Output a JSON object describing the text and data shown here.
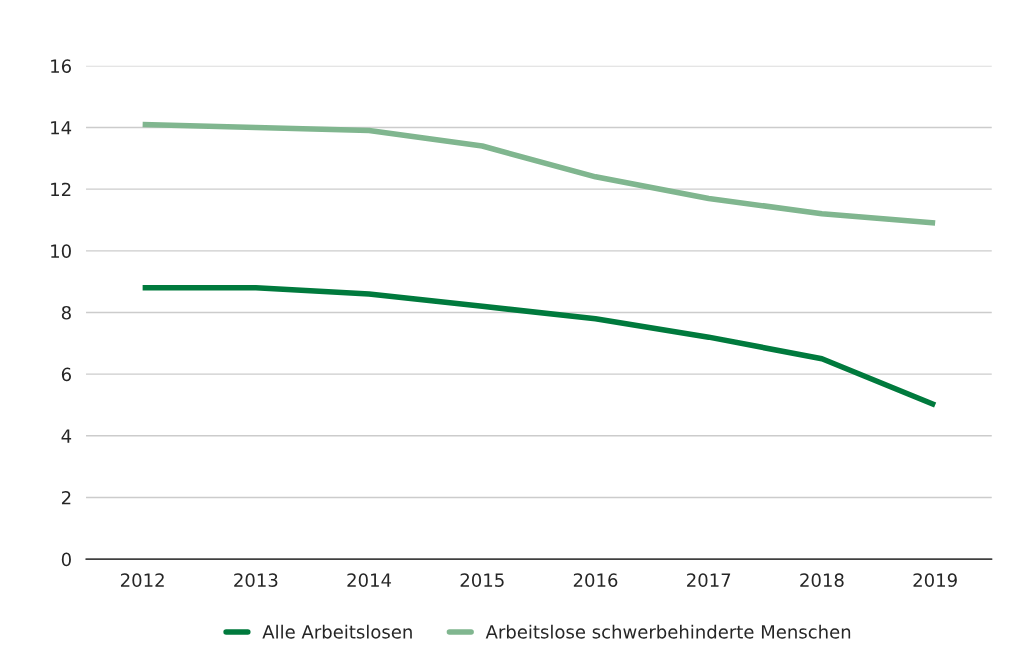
{
  "chart_data": {
    "type": "line",
    "categories": [
      "2012",
      "2013",
      "2014",
      "2015",
      "2016",
      "2017",
      "2018",
      "2019"
    ],
    "series": [
      {
        "name": "Alle Arbeitslosen",
        "color": "#007a3d",
        "values": [
          8.8,
          8.8,
          8.6,
          8.2,
          7.8,
          7.2,
          6.5,
          5.0
        ]
      },
      {
        "name": "Arbeitslose schwerbehinderte Menschen",
        "color": "#80b68f",
        "values": [
          14.1,
          14.0,
          13.9,
          13.4,
          12.4,
          11.7,
          11.2,
          10.9
        ]
      }
    ],
    "ylim": [
      0,
      16
    ],
    "yticks": [
      0,
      2,
      4,
      6,
      8,
      10,
      12,
      14,
      16
    ],
    "grid": "y",
    "legend": "bottom",
    "marker": "none",
    "line_style": "solid"
  }
}
